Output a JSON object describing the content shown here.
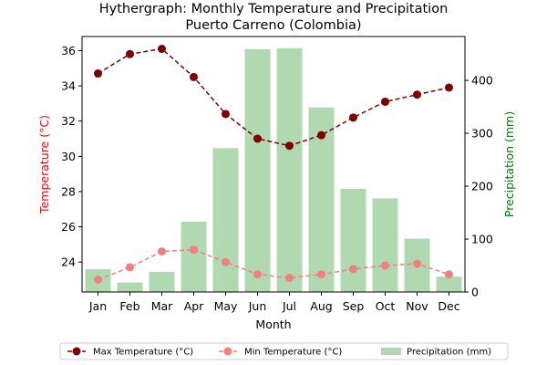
{
  "chart_data": {
    "type": "bar",
    "title": "Hythergraph: Monthly Temperature and Precipitation\nPuerto Carreno (Colombia)",
    "title_lines": [
      "Hythergraph: Monthly Temperature and Precipitation",
      "Puerto Carreno (Colombia)"
    ],
    "xlabel": "Month",
    "ylabel_left": "Temperature (°C)",
    "ylabel_right": "Precipitation (mm)",
    "categories": [
      "Jan",
      "Feb",
      "Mar",
      "Apr",
      "May",
      "Jun",
      "Jul",
      "Aug",
      "Sep",
      "Oct",
      "Nov",
      "Dec"
    ],
    "ylim_left": [
      22.3,
      36.8
    ],
    "ylim_right": [
      0,
      483
    ],
    "yticks_left": [
      24,
      26,
      28,
      30,
      32,
      34,
      36
    ],
    "yticks_right": [
      0,
      100,
      200,
      300,
      400
    ],
    "grid": false,
    "legend_position": "bottom-center",
    "colors": {
      "max_temp": "#800000",
      "min_temp": "#f08080",
      "precip": "#b0d9b1",
      "left_axis": "#ff0000",
      "right_axis": "#008000"
    },
    "series": [
      {
        "name": "Max Temperature (°C)",
        "kind": "line",
        "axis": "left",
        "values": [
          34.7,
          35.8,
          36.1,
          34.5,
          32.4,
          31.0,
          30.6,
          31.2,
          32.2,
          33.1,
          33.5,
          33.9
        ]
      },
      {
        "name": "Min Temperature (°C)",
        "kind": "line",
        "axis": "left",
        "values": [
          23.0,
          23.7,
          24.6,
          24.7,
          24.0,
          23.3,
          23.1,
          23.3,
          23.6,
          23.8,
          23.9,
          23.3
        ]
      },
      {
        "name": "Precipitation (mm)",
        "kind": "bar",
        "axis": "right",
        "values": [
          43,
          18,
          38,
          133,
          272,
          459,
          461,
          349,
          195,
          177,
          101,
          29
        ]
      }
    ]
  }
}
